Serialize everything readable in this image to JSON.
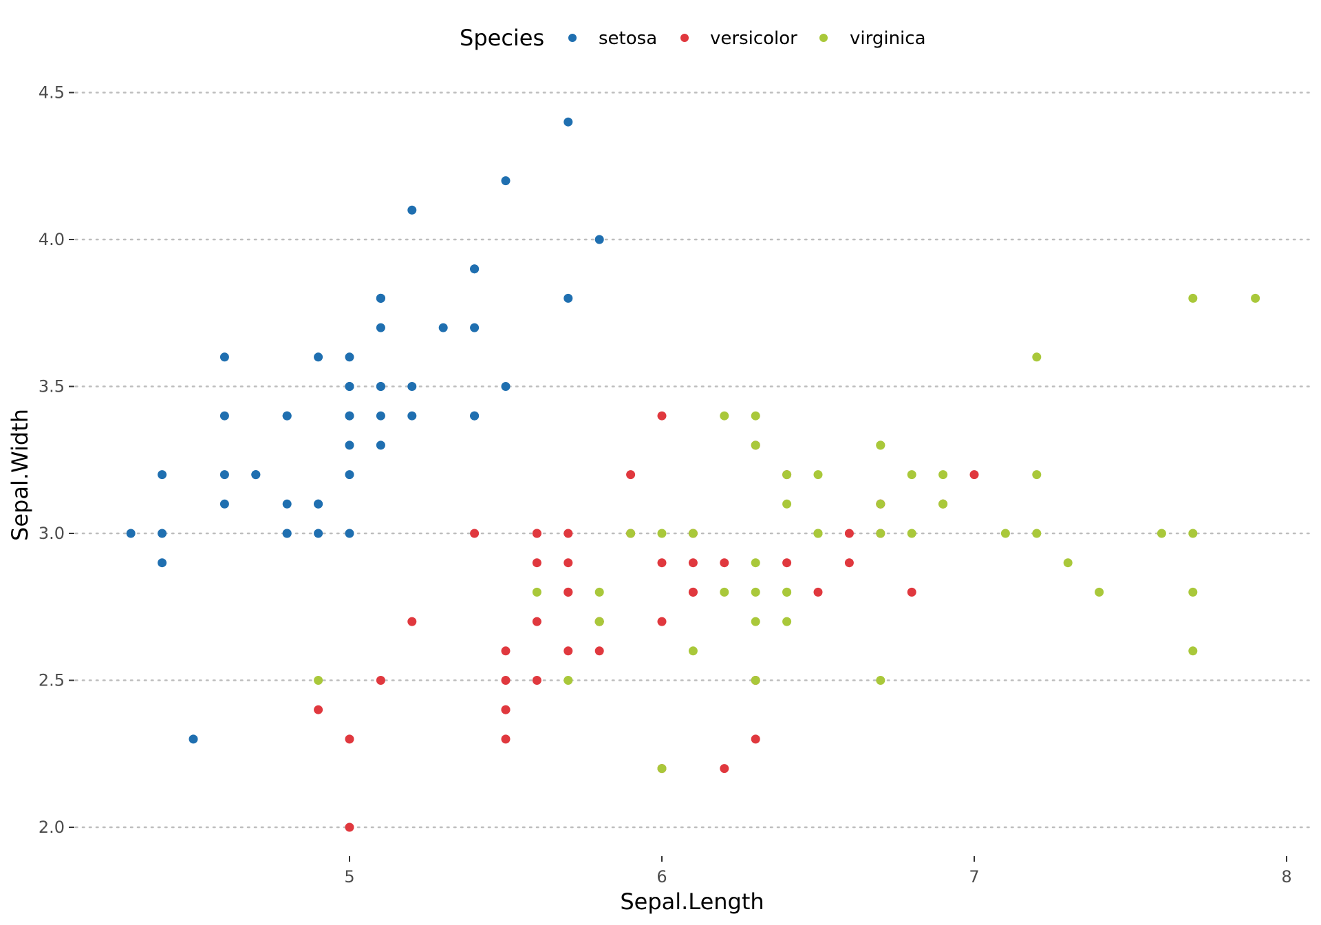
{
  "chart_data": {
    "type": "scatter",
    "xlabel": "Sepal.Length",
    "ylabel": "Sepal.Width",
    "xlim": [
      4.2,
      8.05
    ],
    "ylim": [
      1.9,
      4.6
    ],
    "x_ticks": [
      5,
      6,
      7,
      8
    ],
    "y_ticks": [
      2.0,
      2.5,
      3.0,
      3.5,
      4.0,
      4.5
    ],
    "y_tick_labels": [
      "2.0",
      "2.5",
      "3.0",
      "3.5",
      "4.0",
      "4.5"
    ],
    "grid": "horizontal dotted",
    "legend": {
      "title": "Species",
      "placement": "top"
    },
    "series": [
      {
        "name": "setosa",
        "color": "#1f6fb0",
        "points": [
          [
            5.1,
            3.5
          ],
          [
            4.9,
            3.0
          ],
          [
            4.7,
            3.2
          ],
          [
            4.6,
            3.1
          ],
          [
            5.0,
            3.6
          ],
          [
            5.4,
            3.9
          ],
          [
            4.6,
            3.4
          ],
          [
            5.0,
            3.4
          ],
          [
            4.4,
            2.9
          ],
          [
            4.9,
            3.1
          ],
          [
            5.4,
            3.7
          ],
          [
            4.8,
            3.4
          ],
          [
            4.8,
            3.0
          ],
          [
            4.3,
            3.0
          ],
          [
            5.8,
            4.0
          ],
          [
            5.7,
            4.4
          ],
          [
            5.4,
            3.9
          ],
          [
            5.1,
            3.5
          ],
          [
            5.7,
            3.8
          ],
          [
            5.1,
            3.8
          ],
          [
            5.4,
            3.4
          ],
          [
            5.1,
            3.7
          ],
          [
            4.6,
            3.6
          ],
          [
            5.1,
            3.3
          ],
          [
            4.8,
            3.4
          ],
          [
            5.0,
            3.0
          ],
          [
            5.0,
            3.4
          ],
          [
            5.2,
            3.5
          ],
          [
            5.2,
            3.4
          ],
          [
            4.7,
            3.2
          ],
          [
            4.8,
            3.1
          ],
          [
            5.4,
            3.4
          ],
          [
            5.2,
            4.1
          ],
          [
            5.5,
            4.2
          ],
          [
            4.9,
            3.1
          ],
          [
            5.0,
            3.2
          ],
          [
            5.5,
            3.5
          ],
          [
            4.9,
            3.6
          ],
          [
            4.4,
            3.0
          ],
          [
            5.1,
            3.4
          ],
          [
            5.0,
            3.5
          ],
          [
            4.5,
            2.3
          ],
          [
            4.4,
            3.2
          ],
          [
            5.0,
            3.5
          ],
          [
            5.1,
            3.8
          ],
          [
            4.8,
            3.0
          ],
          [
            5.1,
            3.8
          ],
          [
            4.6,
            3.2
          ],
          [
            5.3,
            3.7
          ],
          [
            5.0,
            3.3
          ]
        ]
      },
      {
        "name": "versicolor",
        "color": "#e0383e",
        "points": [
          [
            7.0,
            3.2
          ],
          [
            6.4,
            3.2
          ],
          [
            6.9,
            3.1
          ],
          [
            5.5,
            2.3
          ],
          [
            6.5,
            2.8
          ],
          [
            5.7,
            2.8
          ],
          [
            6.3,
            3.3
          ],
          [
            4.9,
            2.4
          ],
          [
            6.6,
            2.9
          ],
          [
            5.2,
            2.7
          ],
          [
            5.0,
            2.0
          ],
          [
            5.9,
            3.0
          ],
          [
            6.0,
            2.2
          ],
          [
            6.1,
            2.9
          ],
          [
            5.6,
            2.9
          ],
          [
            6.7,
            3.1
          ],
          [
            5.6,
            3.0
          ],
          [
            5.8,
            2.7
          ],
          [
            6.2,
            2.2
          ],
          [
            5.6,
            2.5
          ],
          [
            5.9,
            3.2
          ],
          [
            6.1,
            2.8
          ],
          [
            6.3,
            2.5
          ],
          [
            6.1,
            2.8
          ],
          [
            6.4,
            2.9
          ],
          [
            6.6,
            3.0
          ],
          [
            6.8,
            2.8
          ],
          [
            6.7,
            3.0
          ],
          [
            6.0,
            2.9
          ],
          [
            5.7,
            2.6
          ],
          [
            5.5,
            2.4
          ],
          [
            5.5,
            2.4
          ],
          [
            5.8,
            2.7
          ],
          [
            6.0,
            2.7
          ],
          [
            5.4,
            3.0
          ],
          [
            6.0,
            3.4
          ],
          [
            6.7,
            3.1
          ],
          [
            6.3,
            2.3
          ],
          [
            5.6,
            3.0
          ],
          [
            5.5,
            2.5
          ],
          [
            5.5,
            2.6
          ],
          [
            6.1,
            3.0
          ],
          [
            5.8,
            2.6
          ],
          [
            5.0,
            2.3
          ],
          [
            5.6,
            2.7
          ],
          [
            5.7,
            3.0
          ],
          [
            5.7,
            2.9
          ],
          [
            6.2,
            2.9
          ],
          [
            5.1,
            2.5
          ],
          [
            5.7,
            2.8
          ]
        ]
      },
      {
        "name": "virginica",
        "color": "#a9c83a",
        "points": [
          [
            6.3,
            3.3
          ],
          [
            5.8,
            2.7
          ],
          [
            7.1,
            3.0
          ],
          [
            6.3,
            2.9
          ],
          [
            6.5,
            3.0
          ],
          [
            7.6,
            3.0
          ],
          [
            4.9,
            2.5
          ],
          [
            7.3,
            2.9
          ],
          [
            6.7,
            2.5
          ],
          [
            7.2,
            3.6
          ],
          [
            6.5,
            3.2
          ],
          [
            6.4,
            2.7
          ],
          [
            6.8,
            3.0
          ],
          [
            5.7,
            2.5
          ],
          [
            5.8,
            2.8
          ],
          [
            6.4,
            3.2
          ],
          [
            6.5,
            3.0
          ],
          [
            7.7,
            3.8
          ],
          [
            7.7,
            2.6
          ],
          [
            6.0,
            2.2
          ],
          [
            6.9,
            3.2
          ],
          [
            5.6,
            2.8
          ],
          [
            7.7,
            2.8
          ],
          [
            6.3,
            2.7
          ],
          [
            6.7,
            3.3
          ],
          [
            7.2,
            3.2
          ],
          [
            6.2,
            2.8
          ],
          [
            6.1,
            3.0
          ],
          [
            6.4,
            2.8
          ],
          [
            7.2,
            3.0
          ],
          [
            7.4,
            2.8
          ],
          [
            7.9,
            3.8
          ],
          [
            6.4,
            2.8
          ],
          [
            6.3,
            2.8
          ],
          [
            6.1,
            2.6
          ],
          [
            7.7,
            3.0
          ],
          [
            6.3,
            3.4
          ],
          [
            6.4,
            3.1
          ],
          [
            6.0,
            3.0
          ],
          [
            6.9,
            3.1
          ],
          [
            6.7,
            3.1
          ],
          [
            6.9,
            3.1
          ],
          [
            5.8,
            2.7
          ],
          [
            6.8,
            3.2
          ],
          [
            6.7,
            3.3
          ],
          [
            6.7,
            3.0
          ],
          [
            6.3,
            2.5
          ],
          [
            6.5,
            3.0
          ],
          [
            6.2,
            3.4
          ],
          [
            5.9,
            3.0
          ]
        ]
      }
    ]
  }
}
